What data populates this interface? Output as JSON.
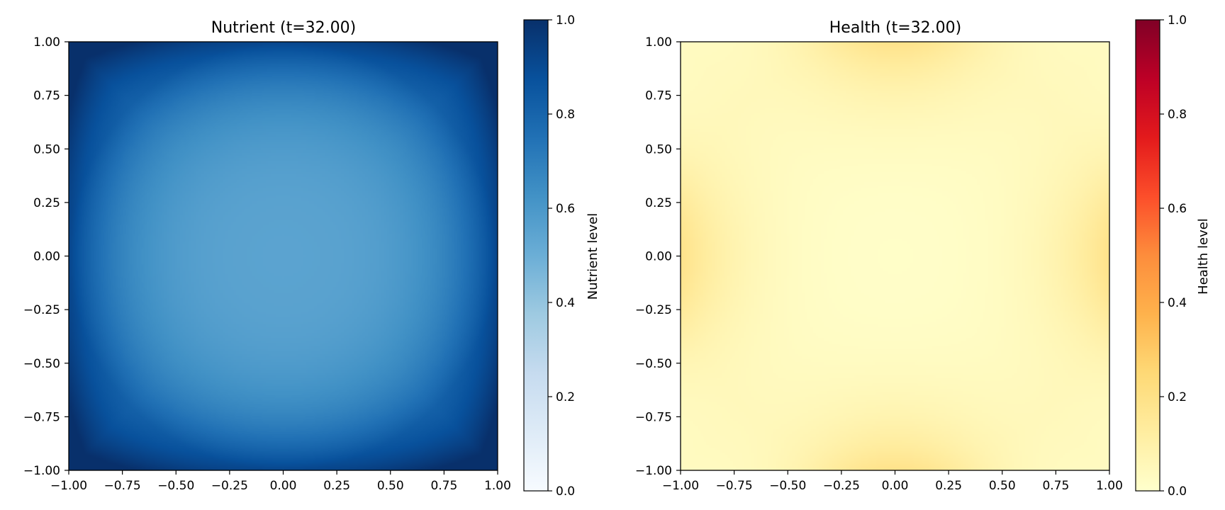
{
  "chart_data": [
    {
      "type": "heatmap",
      "title": "Nutrient (t=32.00)",
      "xlabel": "",
      "ylabel": "",
      "xlim": [
        -1.0,
        1.0
      ],
      "ylim": [
        -1.0,
        1.0
      ],
      "xticks": [
        "−1.00",
        "−0.75",
        "−0.50",
        "−0.25",
        "0.00",
        "0.25",
        "0.50",
        "0.75",
        "1.00"
      ],
      "yticks": [
        "−1.00",
        "−0.75",
        "−0.50",
        "−0.25",
        "0.00",
        "0.25",
        "0.50",
        "0.75",
        "1.00"
      ],
      "tick_values": [
        -1.0,
        -0.75,
        -0.5,
        -0.25,
        0.0,
        0.25,
        0.5,
        0.75,
        1.0
      ],
      "colormap": "Blues",
      "colorbar": {
        "label": "Nutrient level",
        "range": [
          0.0,
          1.0
        ],
        "ticks": [
          "0.0",
          "0.2",
          "0.4",
          "0.6",
          "0.8",
          "1.0"
        ],
        "tick_values": [
          0.0,
          0.2,
          0.4,
          0.6,
          0.8,
          1.0
        ]
      },
      "field": {
        "center_value": 0.55,
        "edge_value": 0.8,
        "corner_value": 0.98
      },
      "grid": false
    },
    {
      "type": "heatmap",
      "title": "Health (t=32.00)",
      "xlabel": "",
      "ylabel": "",
      "xlim": [
        -1.0,
        1.0
      ],
      "ylim": [
        -1.0,
        1.0
      ],
      "xticks": [
        "−1.00",
        "−0.75",
        "−0.50",
        "−0.25",
        "0.00",
        "0.25",
        "0.50",
        "0.75",
        "1.00"
      ],
      "yticks": [
        "−1.00",
        "−0.75",
        "−0.50",
        "−0.25",
        "0.00",
        "0.25",
        "0.50",
        "0.75",
        "1.00"
      ],
      "tick_values": [
        -1.0,
        -0.75,
        -0.5,
        -0.25,
        0.0,
        0.25,
        0.5,
        0.75,
        1.0
      ],
      "colormap": "YlOrRd",
      "colorbar": {
        "label": "Health level",
        "range": [
          0.0,
          1.0
        ],
        "ticks": [
          "0.0",
          "0.2",
          "0.4",
          "0.6",
          "0.8",
          "1.0"
        ],
        "tick_values": [
          0.0,
          0.2,
          0.4,
          0.6,
          0.8,
          1.0
        ]
      },
      "field": {
        "center_value": 0.01,
        "edge_value": 0.17,
        "corner_value": 0.03
      },
      "grid": false
    }
  ],
  "colors": {
    "blues": [
      "#f7fbff",
      "#deebf7",
      "#c6dbef",
      "#9ecae1",
      "#6baed6",
      "#4292c6",
      "#2171b5",
      "#08519c",
      "#08306b"
    ],
    "ylorrd": [
      "#ffffcc",
      "#ffeda0",
      "#fed976",
      "#feb24c",
      "#fd8d3c",
      "#fc4e2a",
      "#e31a1c",
      "#bd0026",
      "#800026"
    ]
  }
}
